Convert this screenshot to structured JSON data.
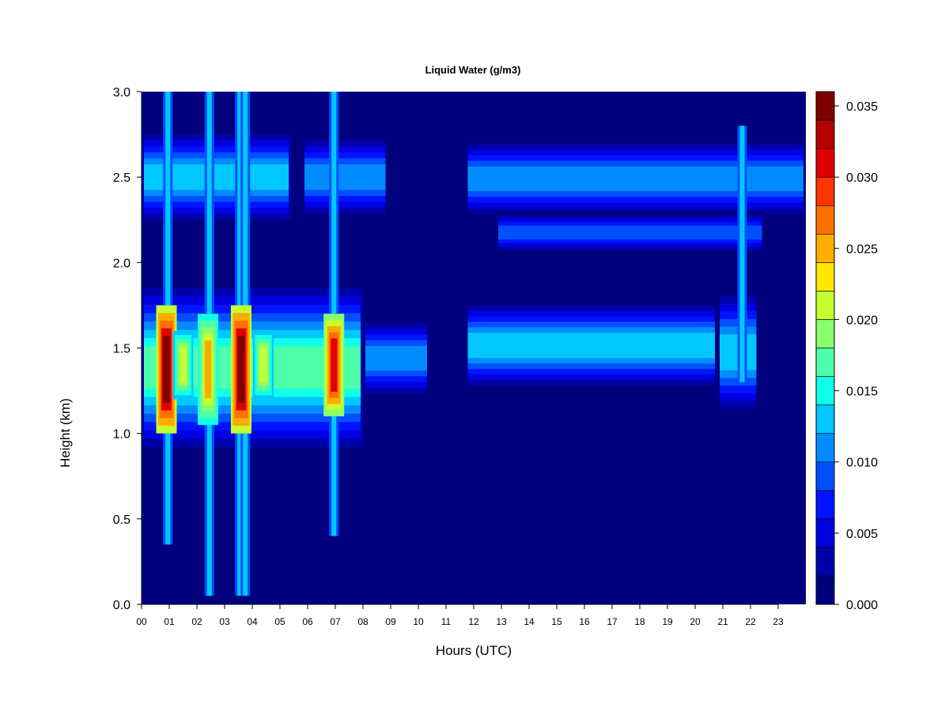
{
  "chart_data": {
    "type": "heatmap",
    "title": "Liquid Water (g/m3)",
    "xlabel": "Hours (UTC)",
    "ylabel": "Height (km)",
    "xlim": [
      0,
      24
    ],
    "ylim": [
      0,
      3
    ],
    "x_ticks": [
      0,
      1,
      2,
      3,
      4,
      5,
      6,
      7,
      8,
      9,
      10,
      11,
      12,
      13,
      14,
      15,
      16,
      17,
      18,
      19,
      20,
      21,
      22,
      23
    ],
    "x_tick_labels": [
      "00",
      "01",
      "02",
      "03",
      "04",
      "05",
      "06",
      "07",
      "08",
      "09",
      "10",
      "11",
      "12",
      "13",
      "14",
      "15",
      "16",
      "17",
      "18",
      "19",
      "20",
      "21",
      "22",
      "23"
    ],
    "y_ticks": [
      0,
      0.5,
      1,
      1.5,
      2,
      2.5,
      3
    ],
    "y_tick_labels": [
      "0.0",
      "0.5",
      "1.0",
      "1.5",
      "2.0",
      "2.5",
      "3.0"
    ],
    "colorbar": {
      "range": [
        0,
        0.036
      ],
      "ticks": [
        0,
        0.005,
        0.01,
        0.015,
        0.02,
        0.025,
        0.03,
        0.035
      ],
      "tick_labels": [
        "0.000",
        "0.005",
        "0.010",
        "0.015",
        "0.020",
        "0.025",
        "0.030",
        "0.035"
      ],
      "colors": [
        "#00007f",
        "#0000aa",
        "#0000e0",
        "#0014ff",
        "#0050ff",
        "#008cff",
        "#00c8ff",
        "#10ffe6",
        "#4cffa8",
        "#88ff6c",
        "#c4ff30",
        "#ffe800",
        "#ffac00",
        "#ff7000",
        "#ff3400",
        "#e00000",
        "#b50000",
        "#800000"
      ]
    },
    "background_value": 0,
    "cloud_layers": [
      {
        "x_range": [
          0.0,
          8.0
        ],
        "y_range": [
          0.92,
          1.85
        ],
        "peak_value": 0.016,
        "note_free": true
      },
      {
        "x_range": [
          8.0,
          10.4
        ],
        "y_range": [
          1.2,
          1.68
        ],
        "peak_value": 0.011
      },
      {
        "x_range": [
          11.7,
          20.8
        ],
        "y_range": [
          1.25,
          1.78
        ],
        "peak_value": 0.013
      },
      {
        "x_range": [
          20.8,
          22.3
        ],
        "y_range": [
          1.1,
          1.85
        ],
        "peak_value": 0.013
      },
      {
        "x_range": [
          0.0,
          5.4
        ],
        "y_range": [
          2.25,
          2.75
        ],
        "peak_value": 0.012
      },
      {
        "x_range": [
          5.8,
          8.9
        ],
        "y_range": [
          2.25,
          2.75
        ],
        "peak_value": 0.011
      },
      {
        "x_range": [
          11.7,
          24.0
        ],
        "y_range": [
          2.25,
          2.73
        ],
        "peak_value": 0.011
      },
      {
        "x_range": [
          12.8,
          22.5
        ],
        "y_range": [
          2.05,
          2.3
        ],
        "peak_value": 0.009
      }
    ],
    "intense_cores": [
      {
        "x": 0.9,
        "y_range": [
          1.0,
          1.75
        ],
        "peak_value": 0.034
      },
      {
        "x": 2.4,
        "y_range": [
          1.05,
          1.7
        ],
        "peak_value": 0.024
      },
      {
        "x": 3.6,
        "y_range": [
          1.0,
          1.75
        ],
        "peak_value": 0.034
      },
      {
        "x": 6.95,
        "y_range": [
          1.1,
          1.7
        ],
        "peak_value": 0.03
      },
      {
        "x": 1.5,
        "y_range": [
          1.2,
          1.6
        ],
        "peak_value": 0.02
      },
      {
        "x": 4.4,
        "y_range": [
          1.2,
          1.6
        ],
        "peak_value": 0.02
      }
    ],
    "vertical_streaks": [
      {
        "x": 0.95,
        "y_range": [
          0.35,
          3.0
        ],
        "value": 0.013
      },
      {
        "x": 2.45,
        "y_range": [
          0.05,
          3.0
        ],
        "value": 0.012
      },
      {
        "x": 3.55,
        "y_range": [
          0.05,
          3.0
        ],
        "value": 0.013
      },
      {
        "x": 3.75,
        "y_range": [
          0.05,
          3.0
        ],
        "value": 0.012
      },
      {
        "x": 6.95,
        "y_range": [
          0.4,
          3.0
        ],
        "value": 0.012
      },
      {
        "x": 21.7,
        "y_range": [
          1.3,
          2.8
        ],
        "value": 0.012
      }
    ]
  }
}
